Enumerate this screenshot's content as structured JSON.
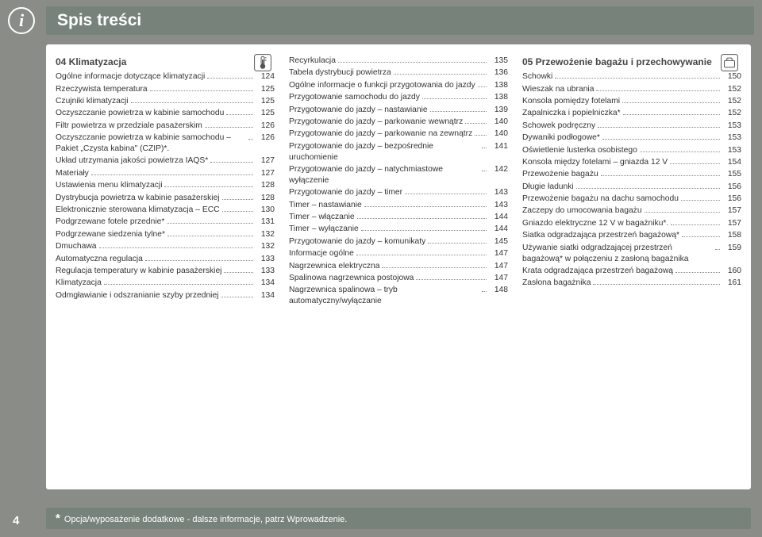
{
  "header": {
    "title": "Spis treści"
  },
  "footer": {
    "page_number": "4",
    "star": "*",
    "text": "Opcja/wyposażenie dodatkowe - dalsze informacje, patrz Wprowadzenie."
  },
  "sections": [
    {
      "title": "04 Klimatyzacja",
      "icon": "thermometer",
      "items": [
        {
          "label": "Ogólne informacje dotyczące klimatyzacji",
          "page": "124"
        },
        {
          "label": "Rzeczywista temperatura",
          "page": "125"
        },
        {
          "label": "Czujniki klimatyzacji",
          "page": "125"
        },
        {
          "label": "Oczyszczanie powietrza w kabinie samochodu",
          "page": "125"
        },
        {
          "label": "Filtr powietrza w przedziale pasażerskim",
          "page": "126"
        },
        {
          "label": "Oczyszczanie powietrza w kabinie samochodu – Pakiet „Czysta kabina\" (CZIP)*.",
          "page": "126"
        },
        {
          "label": "Układ utrzymania jakości powietrza IAQS*",
          "page": "127"
        },
        {
          "label": "Materiały",
          "page": "127"
        },
        {
          "label": "Ustawienia menu klimatyzacji",
          "page": "128"
        },
        {
          "label": "Dystrybucja powietrza w kabinie pasażerskiej",
          "page": "128"
        },
        {
          "label": "Elektronicznie sterowana klimatyzacja – ECC",
          "page": "130"
        },
        {
          "label": "Podgrzewane fotele przednie*",
          "page": "131"
        },
        {
          "label": "Podgrzewane siedzenia tylne*",
          "page": "132"
        },
        {
          "label": "Dmuchawa",
          "page": "132"
        },
        {
          "label": "Automatyczna regulacja",
          "page": "133"
        },
        {
          "label": "Regulacja temperatury w kabinie pasażerskiej",
          "page": "133"
        },
        {
          "label": "Klimatyzacja",
          "page": "134"
        },
        {
          "label": "Odmgławianie i odszranianie szyby przedniej",
          "page": "134"
        }
      ]
    },
    {
      "title": "",
      "icon": "",
      "items": [
        {
          "label": "Recyrkulacja",
          "page": "135"
        },
        {
          "label": "Tabela dystrybucji powietrza",
          "page": "136"
        },
        {
          "label": "Ogólne informacje o funkcji przygotowania do jazdy",
          "page": "138"
        },
        {
          "label": "Przygotowanie samochodu do jazdy",
          "page": "138"
        },
        {
          "label": "Przygotowanie do jazdy – nastawianie",
          "page": "139"
        },
        {
          "label": "Przygotowanie do jazdy – parkowanie wewnątrz",
          "page": "140"
        },
        {
          "label": "Przygotowanie do jazdy – parkowanie na zewnątrz",
          "page": "140"
        },
        {
          "label": "Przygotowanie do jazdy – bezpośrednie uruchomienie",
          "page": "141"
        },
        {
          "label": "Przygotowanie do jazdy – natychmiastowe wyłączenie",
          "page": "142"
        },
        {
          "label": "Przygotowanie do jazdy – timer",
          "page": "143"
        },
        {
          "label": "Timer – nastawianie",
          "page": "143"
        },
        {
          "label": "Timer – włączanie",
          "page": "144"
        },
        {
          "label": "Timer – wyłączanie",
          "page": "144"
        },
        {
          "label": "Przygotowanie do jazdy – komunikaty",
          "page": "145"
        },
        {
          "label": "Informacje ogólne",
          "page": "147"
        },
        {
          "label": "Nagrzewnica elektryczna",
          "page": "147"
        },
        {
          "label": "Spalinowa nagrzewnica postojowa",
          "page": "147"
        },
        {
          "label": "Nagrzewnica spalinowa – tryb automatyczny/wyłączanie",
          "page": "148"
        }
      ]
    },
    {
      "title": "05 Przewożenie bagażu i przechowywanie",
      "icon": "suitcase",
      "items": [
        {
          "label": "Schowki",
          "page": "150"
        },
        {
          "label": "Wieszak na ubrania",
          "page": "152"
        },
        {
          "label": "Konsola pomiędzy fotelami",
          "page": "152"
        },
        {
          "label": "Zapalniczka i popielniczka*",
          "page": "152"
        },
        {
          "label": "Schowek podręczny",
          "page": "153"
        },
        {
          "label": "Dywaniki podłogowe*",
          "page": "153"
        },
        {
          "label": "Oświetlenie lusterka osobistego",
          "page": "153"
        },
        {
          "label": "Konsola między fotelami – gniazda 12 V",
          "page": "154"
        },
        {
          "label": "Przewożenie bagażu",
          "page": "155"
        },
        {
          "label": "Długie ładunki",
          "page": "156"
        },
        {
          "label": "Przewożenie bagażu na dachu samochodu",
          "page": "156"
        },
        {
          "label": "Zaczepy do umocowania bagażu",
          "page": "157"
        },
        {
          "label": "Gniazdo elektryczne 12 V w bagażniku*.",
          "page": "157"
        },
        {
          "label": "Siatka odgradzająca przestrzeń bagażową*",
          "page": "158"
        },
        {
          "label": "Używanie siatki odgradzającej przestrzeń bagażową* w połączeniu z zasłoną bagażnika",
          "page": "159"
        },
        {
          "label": "Krata odgradzająca przestrzeń bagażową",
          "page": "160"
        },
        {
          "label": "Zasłona bagażnika",
          "page": "161"
        }
      ]
    }
  ],
  "colors": {
    "page_bg": "#8a8d87",
    "bar_bg": "#77837a",
    "text": "#333333"
  }
}
